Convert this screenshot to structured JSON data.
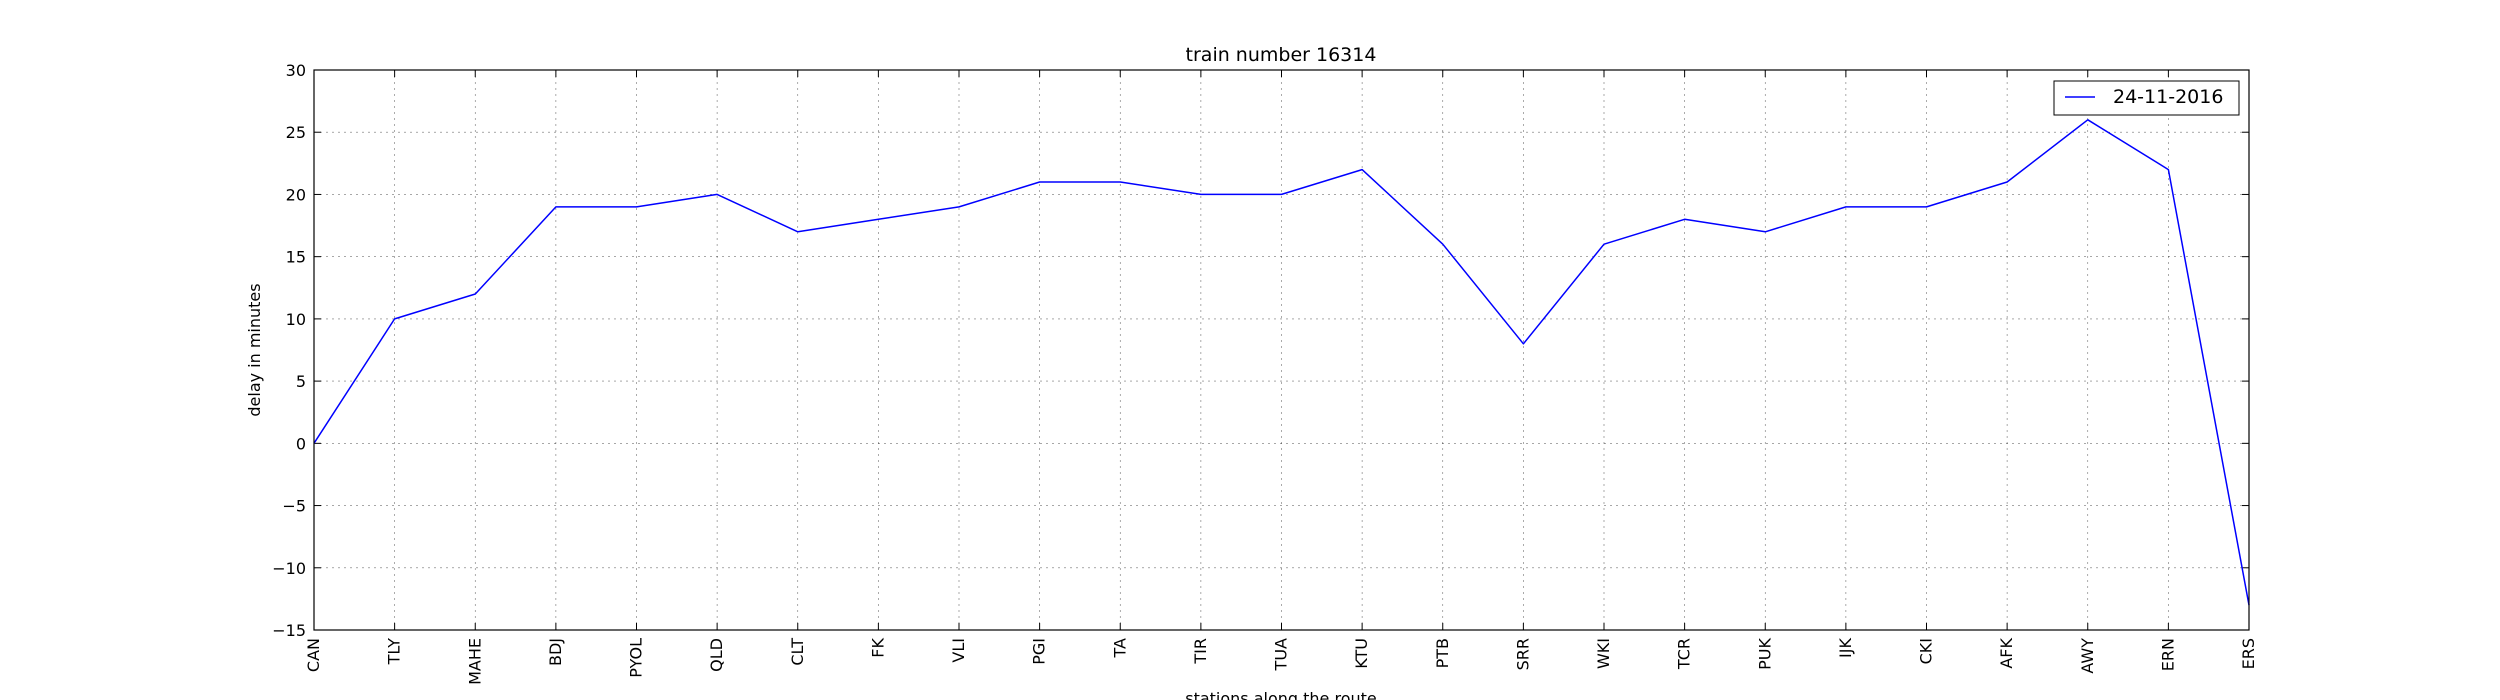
{
  "chart_data": {
    "type": "line",
    "title": "train number 16314",
    "xlabel": "stations along the route",
    "ylabel": "delay in minutes",
    "categories": [
      "CAN",
      "TLY",
      "MAHE",
      "BDJ",
      "PYOL",
      "QLD",
      "CLT",
      "FK",
      "VLI",
      "PGI",
      "TA",
      "TIR",
      "TUA",
      "KTU",
      "PTB",
      "SRR",
      "WKI",
      "TCR",
      "PUK",
      "IJK",
      "CKI",
      "AFK",
      "AWY",
      "ERN",
      "ERS"
    ],
    "series": [
      {
        "name": "24-11-2016",
        "color": "#0000ff",
        "values": [
          0,
          10,
          12,
          19,
          19,
          20,
          17,
          18,
          19,
          21,
          21,
          20,
          20,
          22,
          16,
          8,
          16,
          18,
          17,
          19,
          19,
          21,
          26,
          22,
          -13
        ]
      }
    ],
    "ylim": [
      -15,
      30
    ],
    "yticks": [
      "30",
      "25",
      "20",
      "15",
      "10",
      "5",
      "0",
      "−5",
      "−10",
      "−15"
    ],
    "grid": true,
    "legend_position": "top-right"
  }
}
